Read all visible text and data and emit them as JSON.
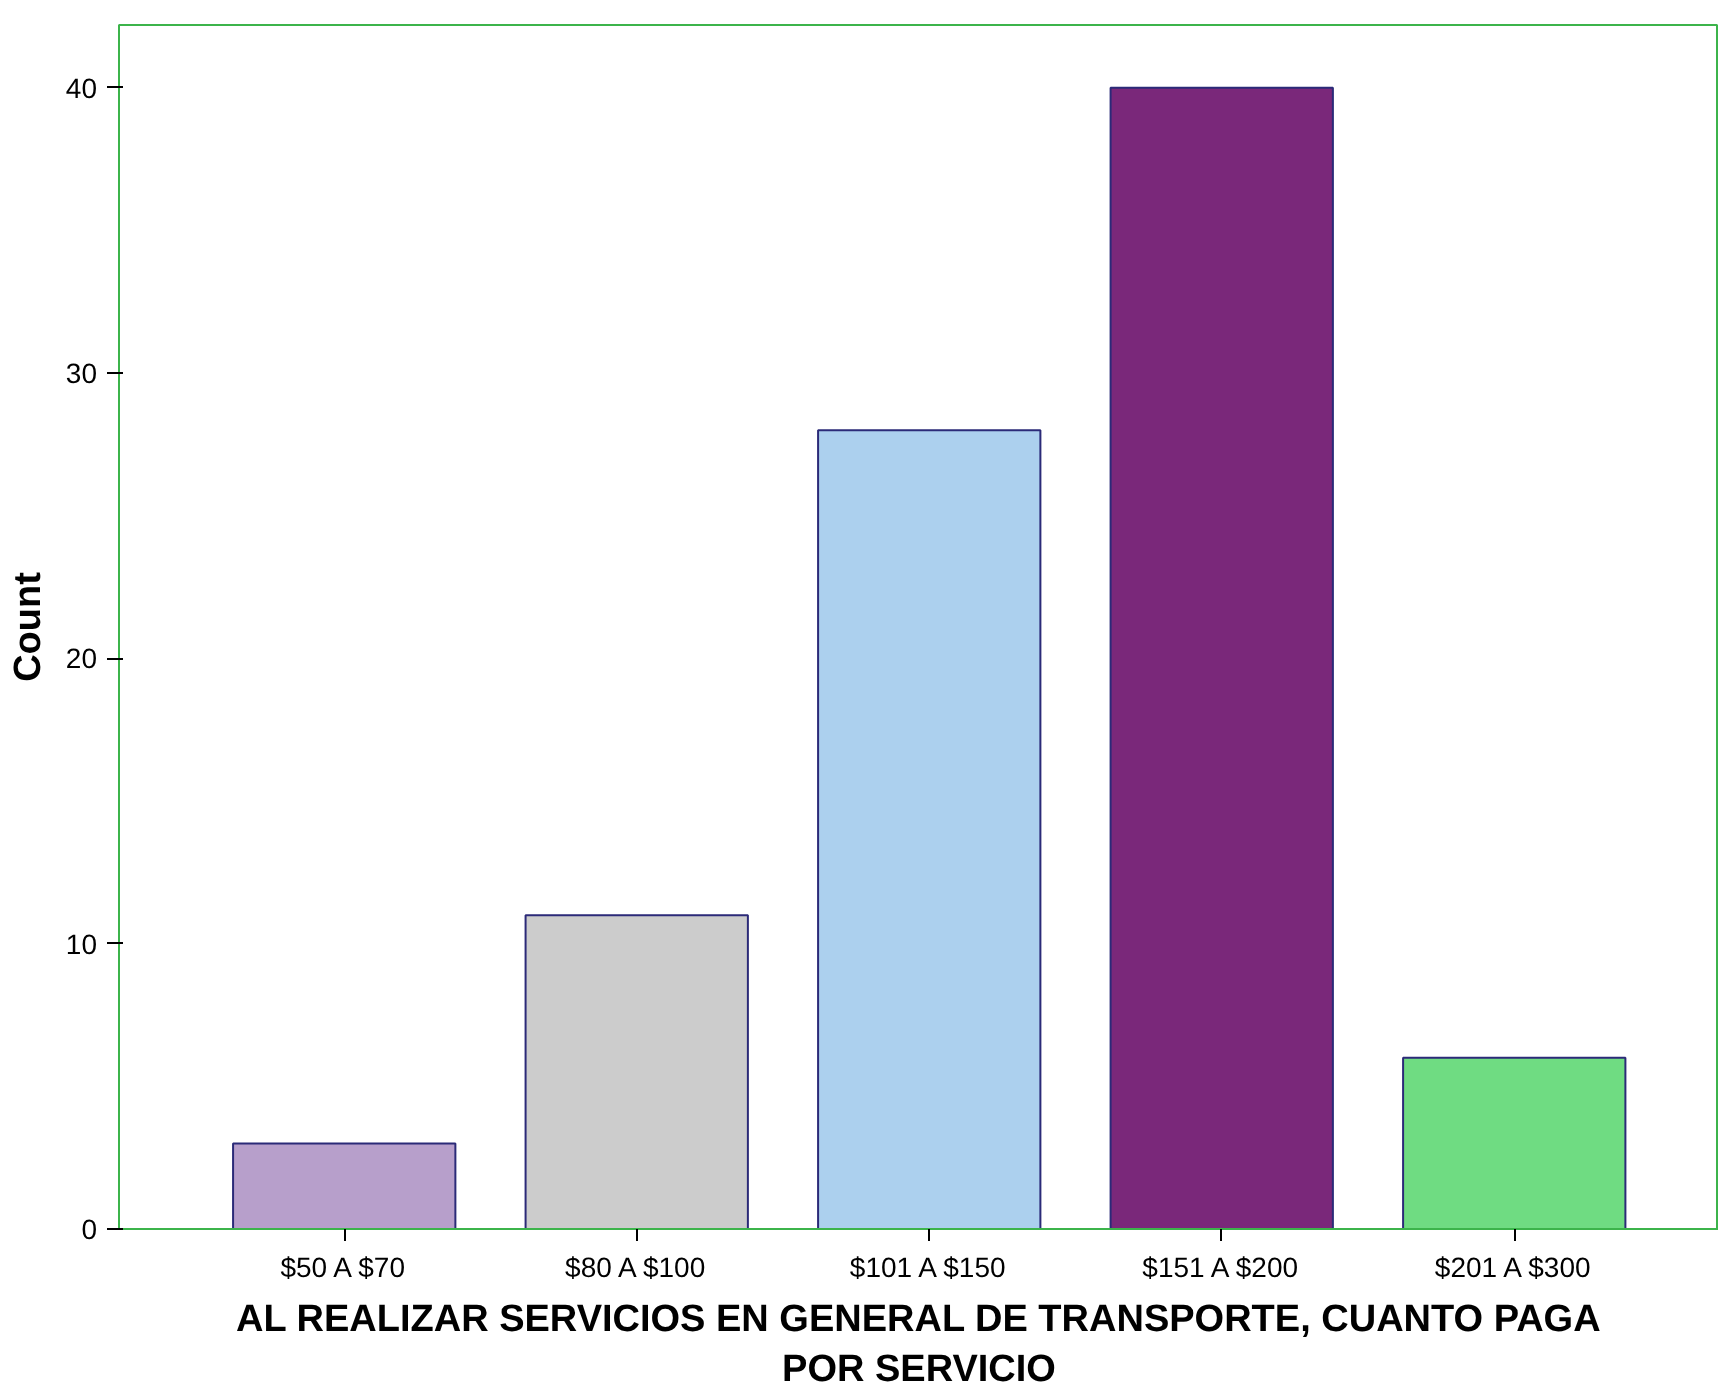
{
  "chart_data": {
    "type": "bar",
    "xlabel": "AL REALIZAR SERVICIOS EN GENERAL DE TRANSPORTE, CUANTO PAGA POR SERVICIO",
    "ylabel": "Count",
    "categories": [
      "$50 A $70",
      "$80 A $100",
      "$101 A $150",
      "$151 A $200",
      "$201 A $300"
    ],
    "values": [
      3,
      11,
      28,
      40,
      6
    ],
    "colors": [
      "#b79fcb",
      "#cccccc",
      "#acd0ee",
      "#7a287a",
      "#6fdc82"
    ],
    "ylim": [
      0,
      42.2
    ],
    "yticks": [
      0,
      10,
      20,
      30,
      40
    ],
    "grid": false
  }
}
